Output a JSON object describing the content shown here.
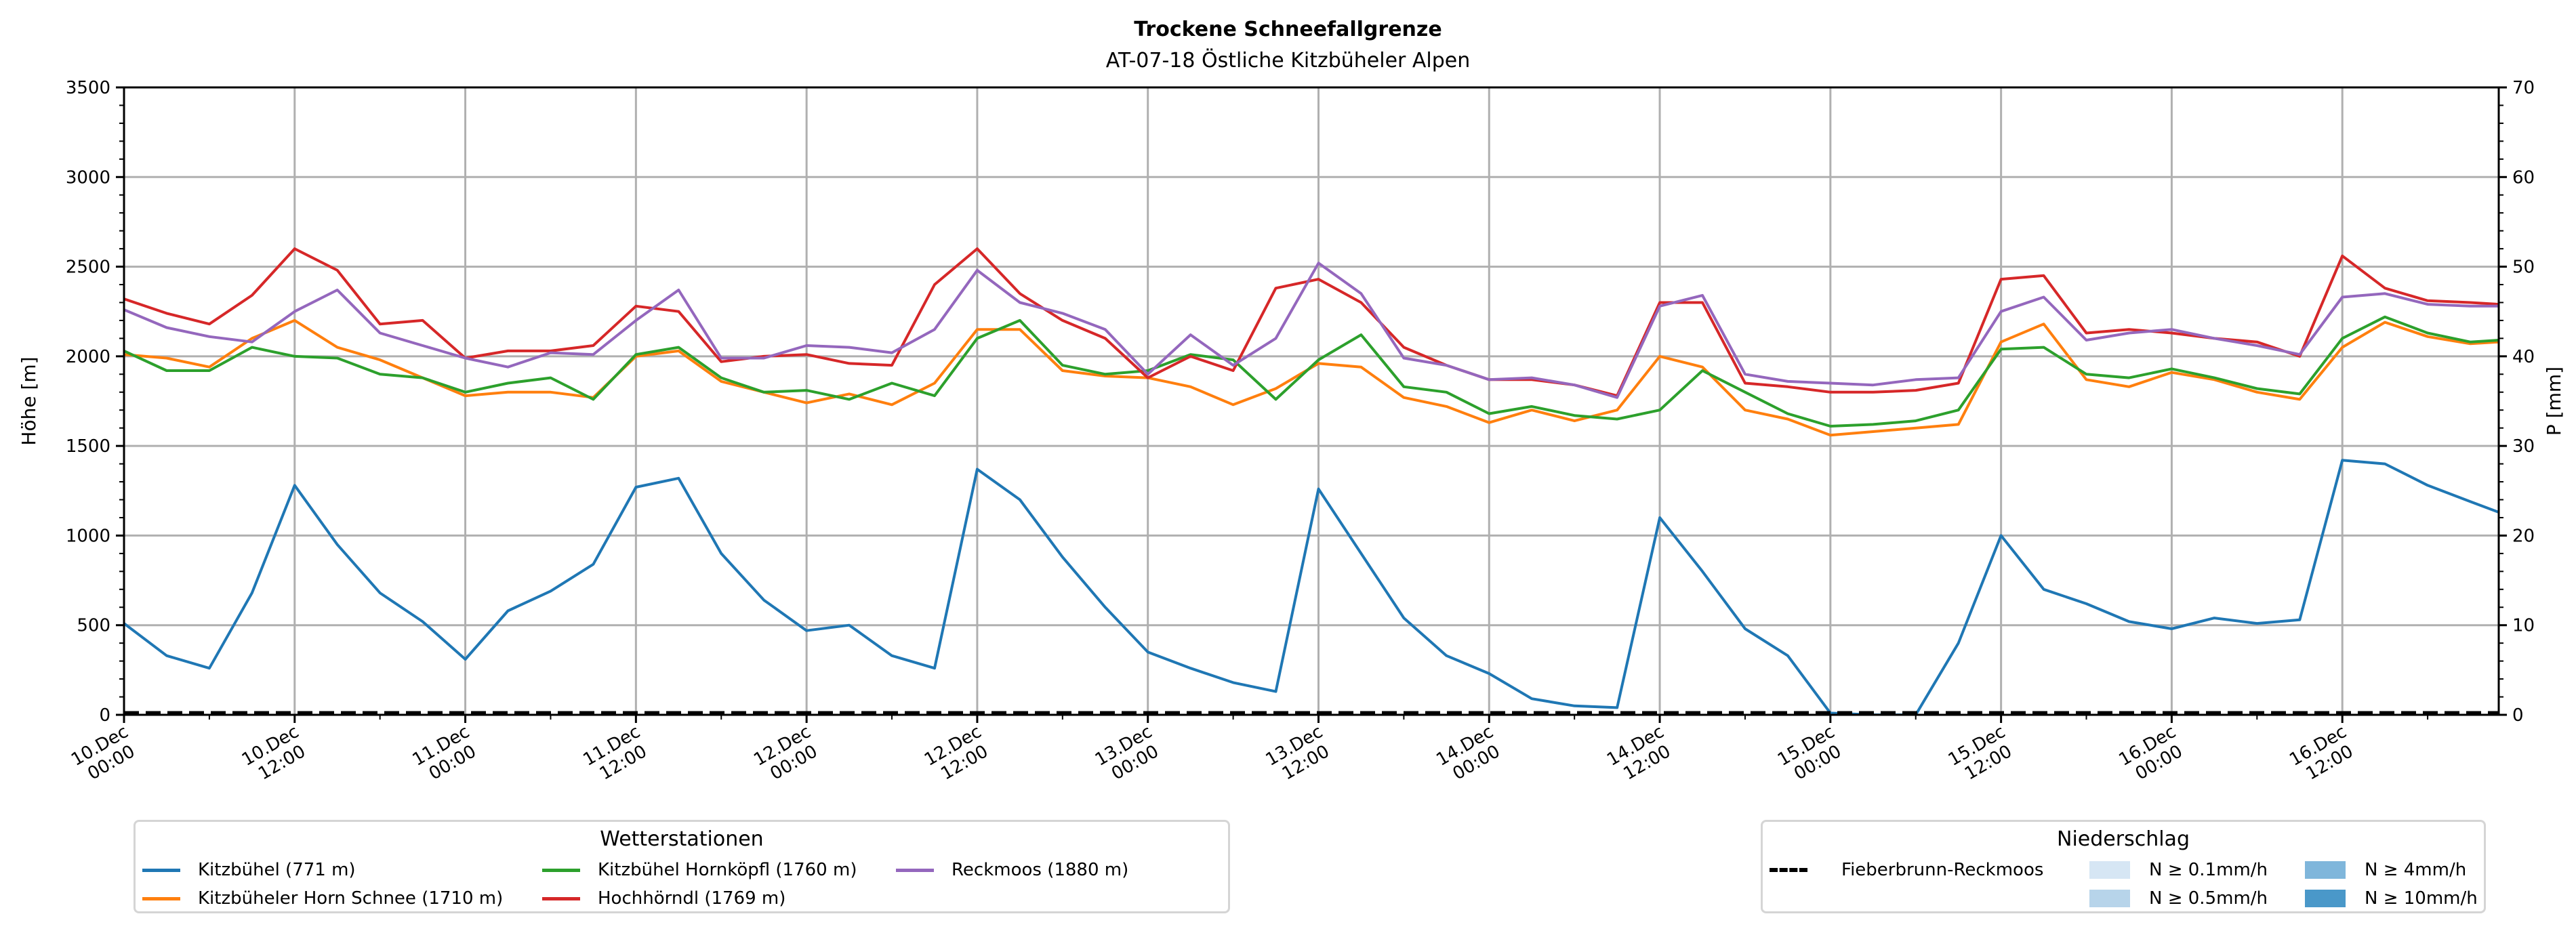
{
  "chart_data": {
    "type": "line",
    "title": "Trockene Schneefallgrenze",
    "subtitle": "AT-07-18 Östliche Kitzbüheler Alpen",
    "ylabel": "Höhe [m]",
    "y2label": "P [mm]",
    "ylim": [
      0,
      3500
    ],
    "y2lim": [
      0,
      70
    ],
    "yticks": [
      "0",
      "500",
      "1000",
      "1500",
      "2000",
      "2500",
      "3000",
      "3500"
    ],
    "y2ticks": [
      "0",
      "10",
      "20",
      "30",
      "40",
      "50",
      "60",
      "70"
    ],
    "grid": true,
    "x_unit": "hours since 10.Dec 00:00",
    "xlim": [
      0,
      167
    ],
    "xticks": [
      {
        "h": 0,
        "l1": "10.Dec",
        "l2": "00:00"
      },
      {
        "h": 12,
        "l1": "10.Dec",
        "l2": "12:00"
      },
      {
        "h": 24,
        "l1": "11.Dec",
        "l2": "00:00"
      },
      {
        "h": 36,
        "l1": "11.Dec",
        "l2": "12:00"
      },
      {
        "h": 48,
        "l1": "12.Dec",
        "l2": "00:00"
      },
      {
        "h": 60,
        "l1": "12.Dec",
        "l2": "12:00"
      },
      {
        "h": 72,
        "l1": "13.Dec",
        "l2": "00:00"
      },
      {
        "h": 84,
        "l1": "13.Dec",
        "l2": "12:00"
      },
      {
        "h": 96,
        "l1": "14.Dec",
        "l2": "00:00"
      },
      {
        "h": 108,
        "l1": "14.Dec",
        "l2": "12:00"
      },
      {
        "h": 120,
        "l1": "15.Dec",
        "l2": "00:00"
      },
      {
        "h": 132,
        "l1": "15.Dec",
        "l2": "12:00"
      },
      {
        "h": 144,
        "l1": "16.Dec",
        "l2": "00:00"
      },
      {
        "h": 156,
        "l1": "16.Dec",
        "l2": "12:00"
      }
    ],
    "x": [
      0,
      3,
      6,
      9,
      12,
      15,
      18,
      21,
      24,
      27,
      30,
      33,
      36,
      39,
      42,
      45,
      48,
      51,
      54,
      57,
      60,
      63,
      66,
      69,
      72,
      75,
      78,
      81,
      84,
      87,
      90,
      93,
      96,
      99,
      102,
      105,
      108,
      111,
      114,
      117,
      120,
      123,
      126,
      129,
      132,
      135,
      138,
      141,
      144,
      147,
      150,
      153,
      156,
      159,
      162,
      165,
      167
    ],
    "series": [
      {
        "name": "Kitzbühel (771 m)",
        "color": "#1f77b4",
        "values": [
          510,
          330,
          260,
          680,
          1280,
          950,
          680,
          520,
          310,
          580,
          690,
          840,
          1270,
          1320,
          900,
          640,
          470,
          500,
          330,
          260,
          1370,
          1200,
          880,
          600,
          350,
          260,
          180,
          130,
          1260,
          900,
          540,
          330,
          230,
          90,
          50,
          40,
          1100,
          800,
          480,
          330,
          10,
          0,
          0,
          400,
          1000,
          700,
          620,
          520,
          480,
          540,
          510,
          530,
          1420,
          1400,
          1280,
          1190,
          1130
        ]
      },
      {
        "name": "Kitzbüheler Horn Schnee (1710 m)",
        "color": "#ff7f0e",
        "values": [
          2010,
          1990,
          1940,
          2100,
          2200,
          2050,
          1980,
          1880,
          1780,
          1800,
          1800,
          1770,
          2000,
          2030,
          1860,
          1800,
          1740,
          1790,
          1730,
          1850,
          2150,
          2150,
          1920,
          1890,
          1880,
          1830,
          1730,
          1820,
          1960,
          1940,
          1770,
          1720,
          1630,
          1700,
          1640,
          1700,
          2000,
          1940,
          1700,
          1650,
          1560,
          1580,
          1600,
          1620,
          2080,
          2180,
          1870,
          1830,
          1910,
          1870,
          1800,
          1760,
          2050,
          2190,
          2110,
          2070,
          2080
        ]
      },
      {
        "name": "Kitzbühel Hornköpfl (1760 m)",
        "color": "#2ca02c",
        "values": [
          2030,
          1920,
          1920,
          2050,
          2000,
          1990,
          1900,
          1880,
          1800,
          1850,
          1880,
          1760,
          2010,
          2050,
          1880,
          1800,
          1810,
          1760,
          1850,
          1780,
          2100,
          2200,
          1950,
          1900,
          1920,
          2010,
          1980,
          1760,
          1980,
          2120,
          1830,
          1800,
          1680,
          1720,
          1670,
          1650,
          1700,
          1920,
          1800,
          1680,
          1610,
          1620,
          1640,
          1700,
          2040,
          2050,
          1900,
          1880,
          1930,
          1880,
          1820,
          1790,
          2100,
          2220,
          2130,
          2080,
          2090
        ]
      },
      {
        "name": "Hochhörndl (1769 m)",
        "color": "#d62728",
        "values": [
          2320,
          2240,
          2180,
          2340,
          2600,
          2480,
          2180,
          2200,
          1990,
          2030,
          2030,
          2060,
          2280,
          2250,
          1970,
          2000,
          2010,
          1960,
          1950,
          2400,
          2600,
          2350,
          2200,
          2100,
          1880,
          2000,
          1920,
          2380,
          2430,
          2300,
          2050,
          1950,
          1870,
          1870,
          1840,
          1780,
          2300,
          2300,
          1850,
          1830,
          1800,
          1800,
          1810,
          1850,
          2430,
          2450,
          2130,
          2150,
          2130,
          2100,
          2080,
          2000,
          2560,
          2380,
          2310,
          2300,
          2290
        ]
      },
      {
        "name": "Reckmoos (1880 m)",
        "color": "#9467bd",
        "values": [
          2260,
          2160,
          2110,
          2080,
          2250,
          2370,
          2130,
          2060,
          1990,
          1940,
          2020,
          2010,
          2200,
          2370,
          1990,
          1990,
          2060,
          2050,
          2020,
          2150,
          2480,
          2300,
          2240,
          2150,
          1900,
          2120,
          1950,
          2100,
          2520,
          2350,
          1990,
          1950,
          1870,
          1880,
          1840,
          1770,
          2280,
          2340,
          1900,
          1860,
          1850,
          1840,
          1870,
          1880,
          2250,
          2330,
          2090,
          2130,
          2150,
          2100,
          2060,
          2010,
          2330,
          2350,
          2290,
          2280,
          2280
        ]
      }
    ],
    "precip_series": {
      "name": "Fieberbrunn-Reckmoos",
      "color": "#000000",
      "style": "dashed",
      "values_mm": [
        0,
        0
      ]
    },
    "legends": {
      "stations": {
        "title": "Wetterstationen",
        "placement": "bottom-left"
      },
      "precip": {
        "title": "Niederschlag",
        "placement": "bottom-right",
        "line_label": "Fieberbrunn-Reckmoos",
        "classes": [
          {
            "label": "N ≥ 0.1mm/h",
            "color": "#d6e6f4"
          },
          {
            "label": "N ≥ 0.5mm/h",
            "color": "#b7d4ea"
          },
          {
            "label": "N ≥ 4mm/h",
            "color": "#7fb6db"
          },
          {
            "label": "N ≥ 10mm/h",
            "color": "#4a98c9"
          }
        ]
      }
    }
  }
}
